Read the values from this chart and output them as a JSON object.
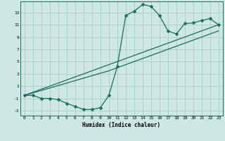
{
  "xlabel": "Humidex (Indice chaleur)",
  "background_color": "#cde8e4",
  "grid_color": "#aacdc8",
  "line_color": "#1a6b5a",
  "xlim": [
    -0.5,
    23.5
  ],
  "ylim": [
    -3.8,
    14.8
  ],
  "xticks": [
    0,
    1,
    2,
    3,
    4,
    5,
    6,
    7,
    8,
    9,
    10,
    11,
    12,
    13,
    14,
    15,
    16,
    17,
    18,
    19,
    20,
    21,
    22,
    23
  ],
  "yticks": [
    -3,
    -1,
    1,
    3,
    5,
    7,
    9,
    11,
    13
  ],
  "line1_x": [
    0,
    1,
    2,
    3,
    4,
    5,
    6,
    7,
    8,
    9,
    10,
    11,
    12,
    13,
    14,
    15,
    16,
    17,
    18,
    19,
    20,
    21,
    22,
    23
  ],
  "line1_y": [
    -0.5,
    -0.5,
    -1.0,
    -1.0,
    -1.2,
    -1.8,
    -2.3,
    -2.8,
    -2.8,
    -2.5,
    -0.5,
    4.2,
    12.5,
    13.2,
    14.3,
    14.0,
    12.5,
    10.0,
    9.5,
    11.2,
    11.3,
    11.7,
    12.0,
    11.0
  ],
  "line2_x": [
    0,
    10,
    23
  ],
  "line2_y": [
    -0.5,
    4.5,
    11.0
  ],
  "line3_x": [
    0,
    10,
    23
  ],
  "line3_y": [
    -0.5,
    3.5,
    10.0
  ],
  "markersize": 2.5,
  "linewidth": 0.9
}
